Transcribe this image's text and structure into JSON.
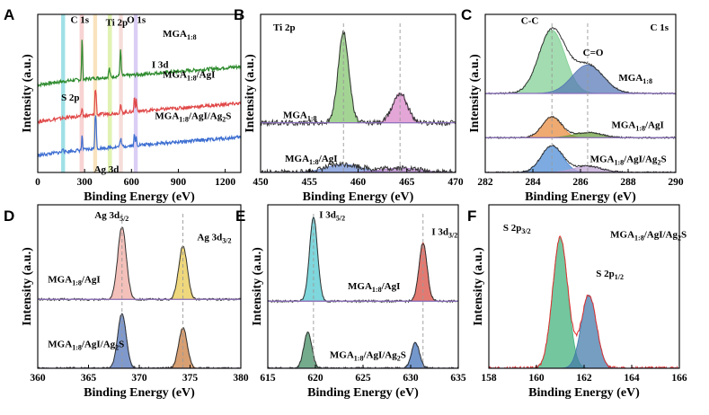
{
  "chart_data": [
    {
      "panel": "A",
      "type": "line",
      "xlabel": "Binding Energy (eV)",
      "ylabel": "Intensity (a.u.)",
      "xlim": [
        0,
        1300
      ],
      "xticks": [
        0,
        300,
        600,
        900,
        1200
      ],
      "bands": [
        {
          "x": [
            150,
            175
          ],
          "color": "#7fd6dc"
        },
        {
          "x": [
            268,
            295
          ],
          "color": "#f5c4c4"
        },
        {
          "x": [
            355,
            380
          ],
          "color": "#f7d9a8"
        },
        {
          "x": [
            448,
            475
          ],
          "color": "#d6ee9a"
        },
        {
          "x": [
            520,
            545
          ],
          "color": "#f3d1cc"
        },
        {
          "x": [
            615,
            640
          ],
          "color": "#cdbdf0"
        }
      ],
      "series": [
        {
          "name": "MGA1:8",
          "color": "#2e8b2e",
          "offset": 3.2,
          "peaks": [
            [
              284,
              1.5,
              3
            ],
            [
              458,
              0.3,
              4
            ],
            [
              530,
              0.9,
              4
            ]
          ]
        },
        {
          "name": "MGA1:8/AgI",
          "color": "#e04848",
          "offset": 1.9,
          "peaks": [
            [
              284,
              0.3,
              3
            ],
            [
              368,
              0.8,
              3
            ],
            [
              374,
              0.6,
              3
            ],
            [
              531,
              0.25,
              4
            ],
            [
              619,
              0.55,
              3
            ],
            [
              631,
              0.45,
              3
            ]
          ]
        },
        {
          "name": "MGA1:8/AgI/Ag2S",
          "color": "#3e6fd1",
          "offset": 0.7,
          "peaks": [
            [
              284,
              0.5,
              3
            ],
            [
              162,
              0.15,
              4
            ],
            [
              368,
              1.05,
              3
            ],
            [
              374,
              0.8,
              3
            ],
            [
              531,
              0.3,
              4
            ],
            [
              619,
              0.4,
              3
            ],
            [
              631,
              0.3,
              3
            ]
          ]
        }
      ],
      "annotations": [
        {
          "text": "C 1s",
          "x": 210,
          "y": 5.3
        },
        {
          "text": "Ti 2p",
          "x": 435,
          "y": 5.2
        },
        {
          "text": "O 1s",
          "x": 570,
          "y": 5.3
        },
        {
          "text": "I 3d",
          "x": 730,
          "y": 3.7
        },
        {
          "text": "S 2p",
          "x": 150,
          "y": 2.55
        },
        {
          "text": "Ag 3d",
          "x": 360,
          "y": 0.0
        },
        {
          "text": "MGA",
          "sub": "1:8",
          "x": 800,
          "y": 4.8
        },
        {
          "text": "MGA",
          "sub": "1:8",
          "suffix": "/AgI",
          "x": 800,
          "y": 3.35
        },
        {
          "text": "MGA",
          "sub": "1:8",
          "suffix": "/AgI/Ag",
          "sub2": "2",
          "suffix2": "S",
          "x": 750,
          "y": 1.9
        }
      ]
    },
    {
      "panel": "B",
      "type": "line",
      "title": "Ti 2p",
      "xlabel": "Binding Energy (eV)",
      "ylabel": "Intensity (a.u.)",
      "xlim": [
        450,
        470
      ],
      "xticks": [
        450,
        455,
        460,
        465,
        470
      ],
      "series": [
        {
          "name": "MGA1:8",
          "offset": 0.55,
          "peaks": [
            [
              458.5,
              1.0,
              0.55,
              "#7fc36b"
            ],
            [
              464.3,
              0.33,
              0.75,
              "#d884c8"
            ]
          ]
        },
        {
          "name": "MGA1:8/AgI",
          "offset": 0.0,
          "peaks": [
            [
              458.5,
              0.09,
              1.8,
              "#6f8fd8"
            ],
            [
              464.3,
              0.05,
              2.0,
              "#b07fc8"
            ]
          ]
        }
      ],
      "guides": [
        458.5,
        464.3
      ],
      "annotations": [
        {
          "text": "MGA",
          "sub": "1:8",
          "x": 452.3,
          "y": 0.6
        },
        {
          "text": "MGA",
          "sub": "1:8",
          "suffix": "/AgI",
          "x": 452.5,
          "y": 0.12
        }
      ]
    },
    {
      "panel": "C",
      "type": "line",
      "title": "C 1s",
      "xlabel": "Binding Energy (eV)",
      "ylabel": "Intensity (a.u.)",
      "xlim": [
        282,
        290
      ],
      "xticks": [
        282,
        284,
        286,
        288,
        290
      ],
      "series": [
        {
          "name": "MGA1:8",
          "offset": 1.25,
          "peaks": [
            [
              284.8,
              1.0,
              0.55,
              "#7fce92"
            ],
            [
              286.3,
              0.45,
              0.65,
              "#5577b5"
            ]
          ]
        },
        {
          "name": "MGA1:8/AgI",
          "offset": 0.55,
          "peaks": [
            [
              284.8,
              0.33,
              0.4,
              "#e8893a"
            ],
            [
              286.3,
              0.08,
              0.6,
              "#6a9e3a"
            ]
          ]
        },
        {
          "name": "MGA1:8/AgI/Ag2S",
          "offset": 0.0,
          "peaks": [
            [
              284.8,
              0.42,
              0.45,
              "#4b8ad6"
            ],
            [
              286.3,
              0.1,
              0.6,
              "#bfa3d6"
            ]
          ]
        }
      ],
      "guides": [
        284.8,
        286.3
      ],
      "annotations": [
        {
          "text": "C-C",
          "x": 283.5,
          "y": 2.35
        },
        {
          "text": "C=O",
          "x": 286.1,
          "y": 1.85
        },
        {
          "text": "MGA",
          "sub": "1:8",
          "x": 287.6,
          "y": 1.45
        },
        {
          "text": "MGA",
          "sub": "1:8",
          "suffix": "/AgI",
          "x": 287.3,
          "y": 0.7
        },
        {
          "text": "MGA",
          "sub": "1:8",
          "suffix": "/AgI/Ag",
          "sub2": "2",
          "suffix2": "S",
          "x": 286.4,
          "y": 0.16
        }
      ]
    },
    {
      "panel": "D",
      "type": "line",
      "xlabel": "Binding Energy (eV)",
      "ylabel": "Intensity (a.u.)",
      "xlim": [
        360,
        380
      ],
      "xticks": [
        360,
        365,
        370,
        375,
        380
      ],
      "series": [
        {
          "name": "MGA1:8/AgI",
          "offset": 0.78,
          "peaks": [
            [
              368.3,
              0.82,
              0.42,
              "#f0a8a0"
            ],
            [
              374.3,
              0.6,
              0.42,
              "#e8c84a"
            ]
          ]
        },
        {
          "name": "MGA1:8/AgI/Ag2S",
          "offset": 0.0,
          "peaks": [
            [
              368.3,
              0.62,
              0.42,
              "#4d72b8"
            ],
            [
              374.3,
              0.46,
              0.42,
              "#c87a3c"
            ]
          ]
        }
      ],
      "guides": [
        368.3,
        374.3
      ],
      "annotations": [
        {
          "text": "Ag 3d",
          "sub": "5/2",
          "x": 365.6,
          "y": 1.7
        },
        {
          "text": "Ag 3d",
          "sub": "3/2",
          "x": 375.7,
          "y": 1.45
        },
        {
          "text": "MGA",
          "sub": "1:8",
          "suffix": "/AgI",
          "x": 361.0,
          "y": 0.97
        },
        {
          "text": "MGA",
          "sub": "1:8",
          "suffix": "/AgI/Ag",
          "sub2": "2",
          "suffix2": "S",
          "x": 361.0,
          "y": 0.24
        }
      ]
    },
    {
      "panel": "E",
      "type": "line",
      "xlabel": "Binding Energy (eV)",
      "ylabel": "Intensity (a.u.)",
      "xlim": [
        615,
        635
      ],
      "xticks": [
        615,
        620,
        625,
        630,
        635
      ],
      "series": [
        {
          "name": "MGA1:8/AgI",
          "offset": 0.78,
          "peaks": [
            [
              619.8,
              0.98,
              0.42,
              "#4cc8cf"
            ],
            [
              631.3,
              0.68,
              0.42,
              "#d8473a"
            ]
          ]
        },
        {
          "name": "MGA1:8/AgI/Ag2S",
          "offset": 0.0,
          "peaks": [
            [
              619.2,
              0.42,
              0.42,
              "#3f8a5f"
            ],
            [
              630.5,
              0.3,
              0.42,
              "#3f6fb8"
            ]
          ]
        }
      ],
      "guides": [
        619.8,
        631.3
      ],
      "annotations": [
        {
          "text": "I 3d",
          "sub": "5/2",
          "x": 620.4,
          "y": 1.75
        },
        {
          "text": "I 3d",
          "sub": "3/2",
          "x": 632.2,
          "y": 1.55
        },
        {
          "text": "MGA",
          "sub": "1:8",
          "suffix": "/AgI",
          "x": 623.4,
          "y": 0.92
        },
        {
          "text": "MGA",
          "sub": "1:8",
          "suffix": "/AgI/Ag",
          "sub2": "2",
          "suffix2": "S",
          "x": 621.5,
          "y": 0.12
        }
      ]
    },
    {
      "panel": "F",
      "type": "line",
      "xlabel": "Binding Energy (eV)",
      "ylabel": "Intensity (a.u.)",
      "xlim": [
        158,
        166
      ],
      "xticks": [
        158,
        160,
        162,
        164,
        166
      ],
      "series": [
        {
          "name": "MGA1:8/AgI/Ag2S",
          "offset": 0.0,
          "peaks": [
            [
              161.0,
              1.0,
              0.32,
              "#3fb07a"
            ],
            [
              162.2,
              0.56,
              0.32,
              "#4178a8"
            ]
          ]
        }
      ],
      "annotations": [
        {
          "text": "S 2p",
          "sub": "3/2",
          "x": 158.6,
          "y": 1.05
        },
        {
          "text": "S 2p",
          "sub": "1/2",
          "x": 162.5,
          "y": 0.7
        },
        {
          "text": "MGA",
          "sub": "1:8",
          "suffix": "/AgI/Ag",
          "sub2": "2",
          "suffix2": "S",
          "x": 163.1,
          "y": 1.0
        }
      ]
    }
  ]
}
